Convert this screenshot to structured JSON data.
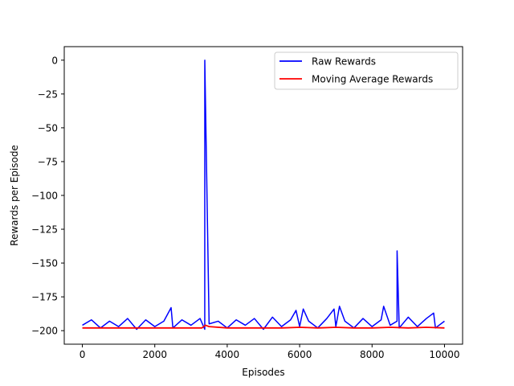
{
  "chart_data": {
    "type": "line",
    "title": "",
    "xlabel": "Episodes",
    "ylabel": "Rewards per Episode",
    "xlim": [
      -500,
      10500
    ],
    "ylim": [
      -210,
      10
    ],
    "x_ticks": [
      0,
      2000,
      4000,
      6000,
      8000,
      10000
    ],
    "y_ticks": [
      0,
      -25,
      -50,
      -75,
      -100,
      -125,
      -150,
      -175,
      -200
    ],
    "x_tick_labels": [
      "0",
      "2000",
      "4000",
      "6000",
      "8000",
      "10000"
    ],
    "y_tick_labels": [
      "0",
      "−25",
      "−50",
      "−75",
      "−100",
      "−125",
      "−150",
      "−175",
      "−200"
    ],
    "grid": false,
    "legend_position": "upper right",
    "series": [
      {
        "name": "Raw Rewards",
        "color": "#0000ff",
        "x": [
          0,
          250,
          500,
          750,
          1000,
          1250,
          1500,
          1750,
          2000,
          2250,
          2450,
          2500,
          2750,
          3000,
          3250,
          3380,
          3381,
          3500,
          3750,
          4000,
          4250,
          4500,
          4750,
          5000,
          5250,
          5500,
          5750,
          5900,
          6000,
          6100,
          6250,
          6500,
          6750,
          6950,
          7000,
          7100,
          7250,
          7500,
          7750,
          8000,
          8250,
          8320,
          8500,
          8690,
          8691,
          8750,
          9000,
          9250,
          9500,
          9700,
          9750,
          10000
        ],
        "y": [
          -196,
          -192,
          -198,
          -193,
          -197,
          -191,
          -199,
          -192,
          -197,
          -193,
          -183,
          -198,
          -192,
          -196,
          -191,
          -199,
          0,
          -195,
          -193,
          -198,
          -192,
          -196,
          -191,
          -199,
          -190,
          -197,
          -192,
          -185,
          -197,
          -184,
          -193,
          -198,
          -191,
          -184,
          -197,
          -182,
          -193,
          -198,
          -191,
          -197,
          -192,
          -182,
          -196,
          -193,
          -141,
          -198,
          -190,
          -197,
          -191,
          -187,
          -198,
          -193
        ]
      },
      {
        "name": "Moving Average Rewards",
        "color": "#ff0000",
        "x": [
          0,
          500,
          1000,
          1500,
          2000,
          2500,
          3000,
          3300,
          3400,
          3500,
          4000,
          4500,
          5000,
          5500,
          6000,
          6500,
          7000,
          7500,
          8000,
          8500,
          9000,
          9500,
          10000
        ],
        "y": [
          -198,
          -198,
          -198,
          -198,
          -198,
          -198,
          -198,
          -198,
          -196,
          -197,
          -198,
          -198,
          -198,
          -198,
          -197.5,
          -198,
          -197.5,
          -198,
          -198,
          -197.5,
          -198,
          -197.5,
          -198
        ]
      }
    ]
  }
}
